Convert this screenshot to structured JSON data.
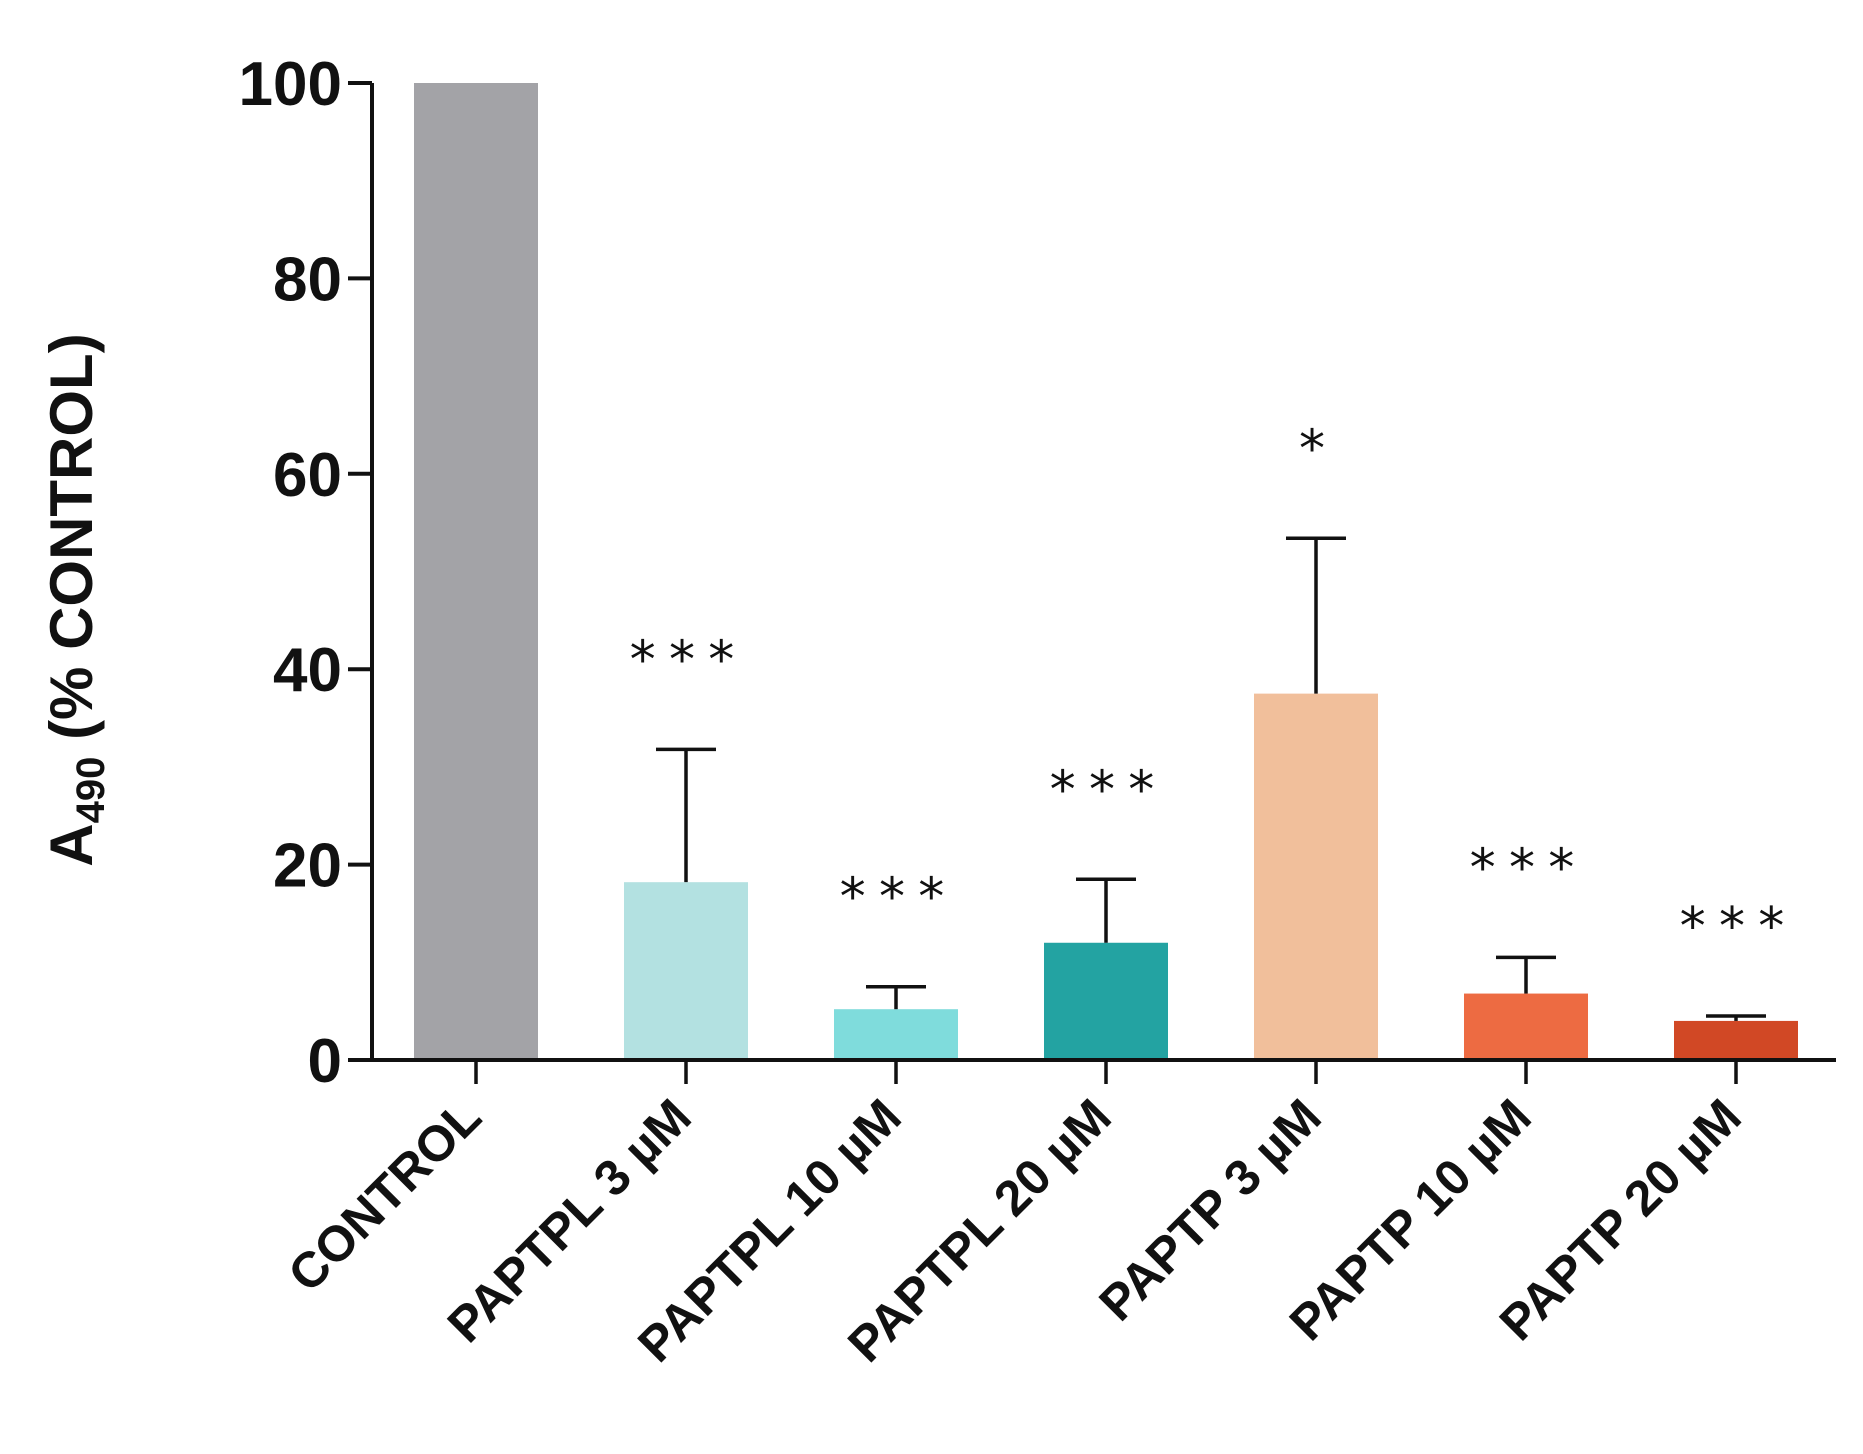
{
  "chart_data": {
    "type": "bar",
    "title": "",
    "ylabel": {
      "main": "A",
      "subscript": "490",
      "suffix": " (% CONTROL)"
    },
    "xlabel": "",
    "ylim": [
      0,
      100
    ],
    "yticks": [
      "0",
      "20",
      "40",
      "60",
      "80",
      "100"
    ],
    "grid": false,
    "legend": "none",
    "categories": [
      "CONTROL",
      "PAPTPL 3 µM",
      "PAPTPL 10 µM",
      "PAPTPL 20 µM",
      "PAPTP 3 µM",
      "PAPTP 10 µM",
      "PAPTP 20 µM"
    ],
    "values": [
      100,
      18.2,
      5.2,
      12.0,
      37.5,
      6.8,
      4.0
    ],
    "error_upper": [
      0,
      13.6,
      2.3,
      6.5,
      15.9,
      3.7,
      0.5
    ],
    "significance": [
      "",
      "***",
      "***",
      "***",
      "*",
      "***",
      "***"
    ],
    "colors": [
      "#a3a3a7",
      "#b3e1e1",
      "#7fdcdc",
      "#23a3a2",
      "#f1bf9b",
      "#ed6b42",
      "#d14825"
    ]
  }
}
